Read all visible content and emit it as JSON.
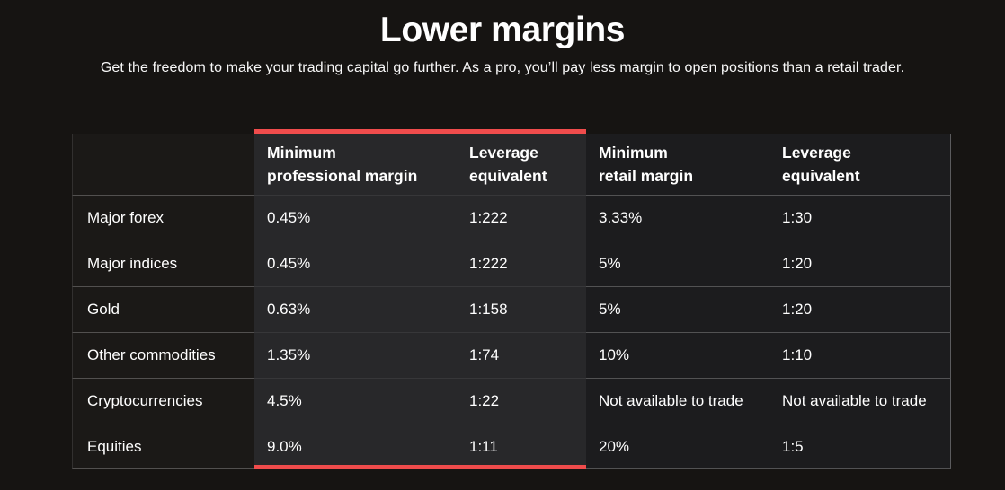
{
  "page": {
    "title": "Lower margins",
    "subtitle": "Get the freedom to make your trading capital go further. As a pro, you’ll pay less margin to open positions than a retail trader."
  },
  "table": {
    "columns": [
      {
        "id": "category",
        "line1": "",
        "line2": ""
      },
      {
        "id": "pro-margin",
        "line1": "Minimum",
        "line2": "professional margin",
        "group": "professional"
      },
      {
        "id": "pro-leverage",
        "line1": "Leverage",
        "line2": "equivalent",
        "group": "professional"
      },
      {
        "id": "retail-margin",
        "line1": "Minimum",
        "line2": "retail margin",
        "group": "retail"
      },
      {
        "id": "retail-leverage",
        "line1": "Leverage",
        "line2": "equivalent",
        "group": "retail"
      }
    ],
    "rows": [
      {
        "cells": [
          "Major forex",
          "0.45%",
          "1:222",
          "3.33%",
          "1:30"
        ]
      },
      {
        "cells": [
          "Major indices",
          "0.45%",
          "1:222",
          "5%",
          "1:20"
        ]
      },
      {
        "cells": [
          "Gold",
          "0.63%",
          "1:158",
          "5%",
          "1:20"
        ]
      },
      {
        "cells": [
          "Other commodities",
          "1.35%",
          "1:74",
          "10%",
          "1:10"
        ]
      },
      {
        "cells": [
          "Cryptocurrencies",
          "4.5%",
          "1:22",
          "Not available to trade",
          "Not available to trade"
        ]
      },
      {
        "cells": [
          "Equities",
          "9.0%",
          "1:11",
          "20%",
          "1:5"
        ]
      }
    ]
  },
  "colors": {
    "accent_red": "#f04c4c",
    "page_background": "#161412",
    "category_column_background": "#1b1917",
    "professional_columns_background": "#28282a",
    "retail_columns_background": "#1c1c1e",
    "text": "#ffffff"
  }
}
